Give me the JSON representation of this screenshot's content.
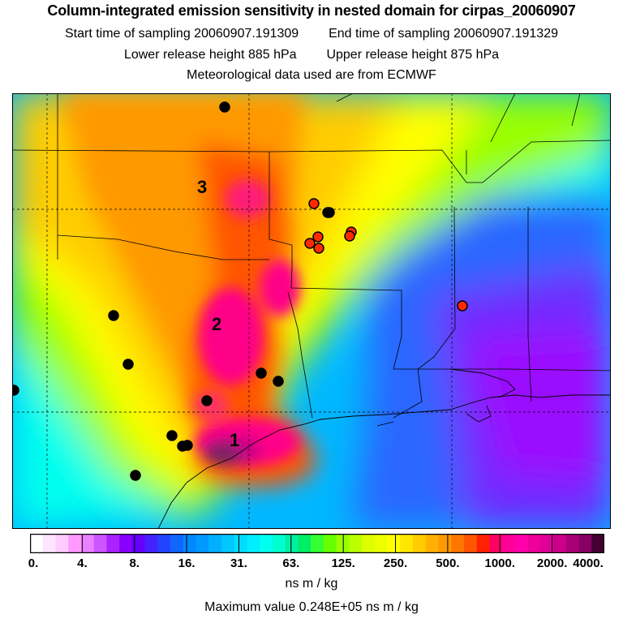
{
  "header": {
    "title": "Column-integrated emission sensitivity in nested domain for cirpas_20060907",
    "start_label": "Start time of sampling",
    "start_value": "20060907.191309",
    "end_label": "End time of sampling",
    "end_value": "20060907.191329",
    "lower_label": "Lower release height",
    "lower_value": "885 hPa",
    "upper_label": "Upper release height",
    "upper_value": "875 hPa",
    "met_line": "Meteorological data used are from ECMWF"
  },
  "map": {
    "site_labels": [
      "1",
      "2",
      "3"
    ],
    "black_marker_count": 13,
    "red_marker_count": 7,
    "colors": {
      "black_marker": "#000000",
      "red_marker": "#ff2a00"
    }
  },
  "colorbar": {
    "tick_labels": [
      "0.",
      "4.",
      "8.",
      "16.",
      "31.",
      "63.",
      "125.",
      "250.",
      "500.",
      "1000.",
      "2000.",
      "4000."
    ],
    "colors": [
      "#ffffff",
      "#ffe6ff",
      "#ffccff",
      "#ff99ff",
      "#e880ff",
      "#cc55ff",
      "#aa22ff",
      "#8800ff",
      "#6600ff",
      "#4422ff",
      "#2244ff",
      "#1166ff",
      "#0088ff",
      "#0099ff",
      "#00b0ff",
      "#00c8ff",
      "#00dcff",
      "#00eeff",
      "#00ffee",
      "#00ffd0",
      "#00f0a0",
      "#00ee66",
      "#33ff33",
      "#66ff00",
      "#99ff00",
      "#bbff00",
      "#ddff00",
      "#eeff00",
      "#ffff00",
      "#ffe600",
      "#ffcc00",
      "#ffb000",
      "#ff9900",
      "#ff7700",
      "#ff5500",
      "#ff2200",
      "#ff0066",
      "#ff0099",
      "#ff00aa",
      "#ee0099",
      "#dd0099",
      "#cc0088",
      "#aa0077",
      "#880066",
      "#440033"
    ],
    "units": "ns m / kg",
    "max_label": "Maximum value",
    "max_value": "0.248E+05 ns m / kg"
  }
}
